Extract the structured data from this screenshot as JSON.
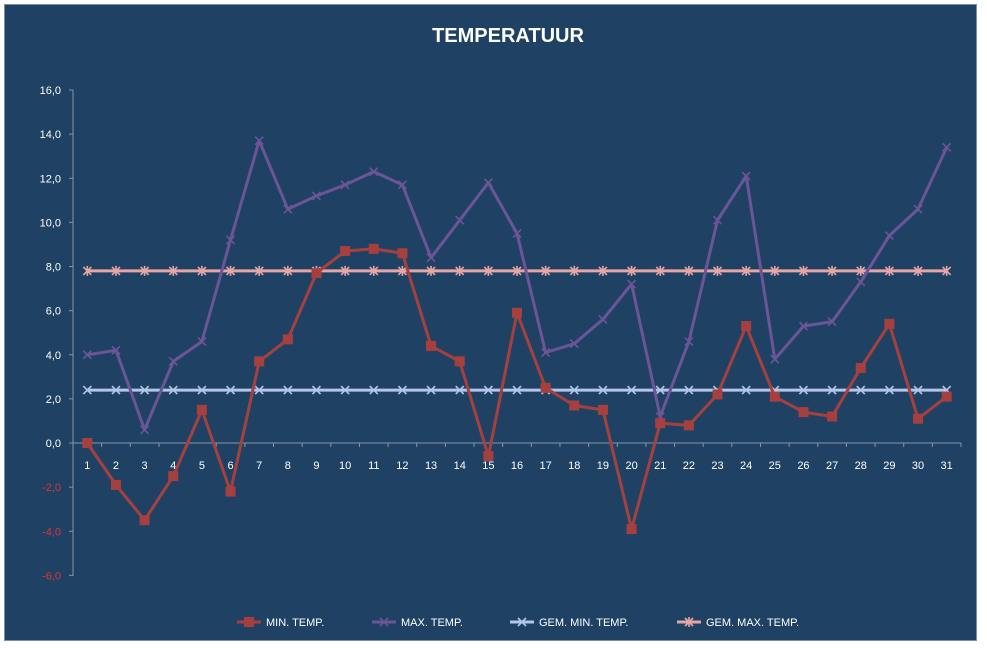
{
  "chart_data": {
    "type": "line",
    "title": "TEMPERATUUR",
    "xlabel": "",
    "ylabel": "",
    "ylim": [
      -6,
      16
    ],
    "ystep": 2,
    "y_tick_labels": [
      "-6,0",
      "-4,0",
      "-2,0",
      "0,0",
      "2,0",
      "4,0",
      "6,0",
      "8,0",
      "10,0",
      "12,0",
      "14,0",
      "16,0"
    ],
    "negative_tick_color": "#e0313c",
    "positive_tick_color": "#ffffff",
    "grid": false,
    "legend_position": "bottom",
    "categories": [
      "1",
      "2",
      "3",
      "4",
      "5",
      "6",
      "7",
      "8",
      "9",
      "10",
      "11",
      "12",
      "13",
      "14",
      "15",
      "16",
      "17",
      "18",
      "19",
      "20",
      "21",
      "22",
      "23",
      "24",
      "25",
      "26",
      "27",
      "28",
      "29",
      "30",
      "31"
    ],
    "series": [
      {
        "name": "MIN. TEMP.",
        "color": "#a6403f",
        "marker": "square",
        "values": [
          0.0,
          -1.9,
          -3.5,
          -1.5,
          1.5,
          -2.2,
          3.7,
          4.7,
          7.7,
          8.7,
          8.8,
          8.6,
          4.4,
          3.7,
          -0.6,
          5.9,
          2.5,
          1.7,
          1.5,
          -3.9,
          0.9,
          0.8,
          2.2,
          5.3,
          2.1,
          1.4,
          1.2,
          3.4,
          5.4,
          1.1,
          2.1
        ]
      },
      {
        "name": "MAX. TEMP.",
        "color": "#6c5596",
        "marker": "x",
        "values": [
          4.0,
          4.2,
          0.6,
          3.7,
          4.6,
          9.2,
          13.7,
          10.6,
          11.2,
          11.7,
          12.3,
          11.7,
          8.4,
          10.1,
          11.8,
          9.5,
          4.1,
          4.5,
          5.6,
          7.2,
          1.2,
          4.6,
          10.1,
          12.1,
          3.8,
          5.3,
          5.5,
          7.3,
          9.4,
          10.6,
          13.4
        ]
      },
      {
        "name": "GEM. MIN. TEMP.",
        "color": "#b4c6e7",
        "marker": "x",
        "values": [
          2.4,
          2.4,
          2.4,
          2.4,
          2.4,
          2.4,
          2.4,
          2.4,
          2.4,
          2.4,
          2.4,
          2.4,
          2.4,
          2.4,
          2.4,
          2.4,
          2.4,
          2.4,
          2.4,
          2.4,
          2.4,
          2.4,
          2.4,
          2.4,
          2.4,
          2.4,
          2.4,
          2.4,
          2.4,
          2.4,
          2.4
        ]
      },
      {
        "name": "GEM. MAX. TEMP.",
        "color": "#e6a6a6",
        "marker": "star",
        "values": [
          7.8,
          7.8,
          7.8,
          7.8,
          7.8,
          7.8,
          7.8,
          7.8,
          7.8,
          7.8,
          7.8,
          7.8,
          7.8,
          7.8,
          7.8,
          7.8,
          7.8,
          7.8,
          7.8,
          7.8,
          7.8,
          7.8,
          7.8,
          7.8,
          7.8,
          7.8,
          7.8,
          7.8,
          7.8,
          7.8,
          7.8
        ]
      }
    ]
  },
  "colors": {
    "background": "#1f4264",
    "axis": "#8796a8",
    "text": "#ffffff"
  }
}
